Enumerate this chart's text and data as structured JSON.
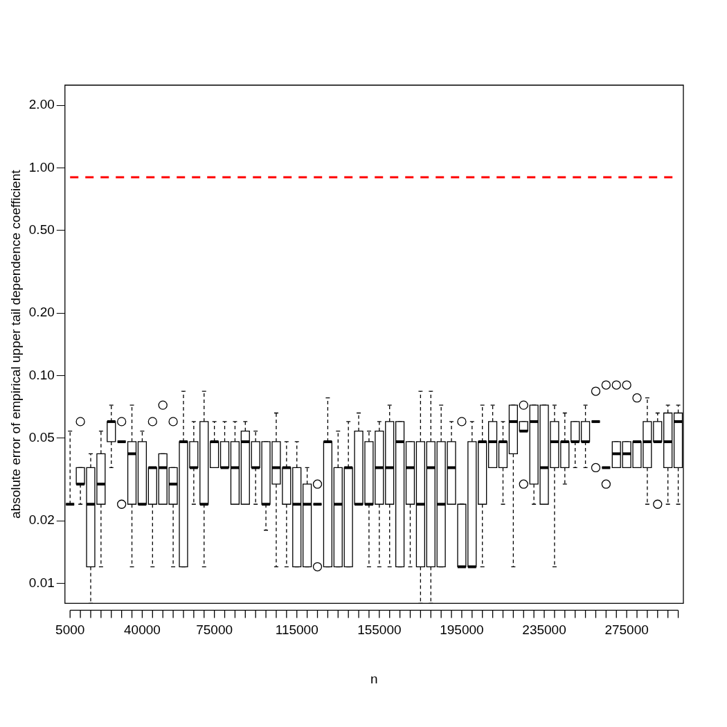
{
  "chart_data": {
    "type": "box",
    "xlabel": "n",
    "ylabel": "absolute error of empirical upper tail dependence coefficient",
    "categories": [
      "5000",
      null,
      null,
      null,
      null,
      null,
      null,
      "40000",
      null,
      null,
      null,
      null,
      null,
      null,
      "75000",
      null,
      null,
      null,
      null,
      null,
      null,
      null,
      "115000",
      null,
      null,
      null,
      null,
      null,
      null,
      null,
      "155000",
      null,
      null,
      null,
      null,
      null,
      null,
      null,
      "195000",
      null,
      null,
      null,
      null,
      null,
      null,
      null,
      "235000",
      null,
      null,
      null,
      null,
      null,
      null,
      null,
      "275000",
      null,
      null,
      null,
      null,
      null
    ],
    "log": "y",
    "ylim": [
      0.008,
      2.5
    ],
    "yticks": [
      {
        "value": 0.01,
        "label": "0.01"
      },
      {
        "value": 0.02,
        "label": "0.02"
      },
      {
        "value": 0.05,
        "label": "0.05"
      },
      {
        "value": 0.1,
        "label": "0.10"
      },
      {
        "value": 0.2,
        "label": "0.20"
      },
      {
        "value": 0.5,
        "label": "0.50"
      },
      {
        "value": 1,
        "label": "1.00"
      },
      {
        "value": 2,
        "label": "2.00"
      }
    ],
    "grid": false,
    "legend": false,
    "ref_lines": [
      {
        "axis": "y",
        "value": 0.9,
        "color": "#ff0000",
        "line_style": "dashed"
      }
    ],
    "boxes": [
      {
        "low": 0.024,
        "q1": 0.024,
        "median": 0.024,
        "q3": 0.024,
        "high": 0.054
      },
      {
        "low": 0.024,
        "q1": 0.03,
        "median": 0.03,
        "q3": 0.036,
        "high": 0.036,
        "outliers": [
          0.06
        ]
      },
      {
        "low": 0.008,
        "q1": 0.012,
        "median": 0.024,
        "q3": 0.036,
        "high": 0.042
      },
      {
        "low": 0.012,
        "q1": 0.024,
        "median": 0.03,
        "q3": 0.042,
        "high": 0.054
      },
      {
        "low": 0.036,
        "q1": 0.048,
        "median": 0.06,
        "q3": 0.06,
        "high": 0.072
      },
      {
        "low": 0.048,
        "q1": 0.048,
        "median": 0.048,
        "q3": 0.048,
        "high": 0.048,
        "outliers": [
          0.06,
          0.024
        ]
      },
      {
        "low": 0.012,
        "q1": 0.024,
        "median": 0.042,
        "q3": 0.048,
        "high": 0.072
      },
      {
        "low": 0.024,
        "q1": 0.024,
        "median": 0.024,
        "q3": 0.048,
        "high": 0.054
      },
      {
        "low": 0.012,
        "q1": 0.024,
        "median": 0.036,
        "q3": 0.036,
        "high": 0.036,
        "outliers": [
          0.06
        ]
      },
      {
        "low": 0.024,
        "q1": 0.024,
        "median": 0.036,
        "q3": 0.042,
        "high": 0.042,
        "outliers": [
          0.072
        ]
      },
      {
        "low": 0.012,
        "q1": 0.024,
        "median": 0.03,
        "q3": 0.036,
        "high": 0.036,
        "outliers": [
          0.06
        ]
      },
      {
        "low": 0.012,
        "q1": 0.012,
        "median": 0.048,
        "q3": 0.048,
        "high": 0.084
      },
      {
        "low": 0.024,
        "q1": 0.036,
        "median": 0.036,
        "q3": 0.048,
        "high": 0.06
      },
      {
        "low": 0.012,
        "q1": 0.024,
        "median": 0.024,
        "q3": 0.06,
        "high": 0.084
      },
      {
        "low": 0.036,
        "q1": 0.036,
        "median": 0.048,
        "q3": 0.048,
        "high": 0.06
      },
      {
        "low": 0.036,
        "q1": 0.036,
        "median": 0.036,
        "q3": 0.048,
        "high": 0.06
      },
      {
        "low": 0.024,
        "q1": 0.024,
        "median": 0.036,
        "q3": 0.048,
        "high": 0.06
      },
      {
        "low": 0.024,
        "q1": 0.024,
        "median": 0.048,
        "q3": 0.054,
        "high": 0.06
      },
      {
        "low": 0.024,
        "q1": 0.036,
        "median": 0.036,
        "q3": 0.048,
        "high": 0.054
      },
      {
        "low": 0.018,
        "q1": 0.024,
        "median": 0.024,
        "q3": 0.048,
        "high": 0.048
      },
      {
        "low": 0.012,
        "q1": 0.03,
        "median": 0.036,
        "q3": 0.048,
        "high": 0.066
      },
      {
        "low": 0.012,
        "q1": 0.024,
        "median": 0.036,
        "q3": 0.036,
        "high": 0.048
      },
      {
        "low": 0.012,
        "q1": 0.012,
        "median": 0.024,
        "q3": 0.036,
        "high": 0.048
      },
      {
        "low": 0.012,
        "q1": 0.012,
        "median": 0.024,
        "q3": 0.03,
        "high": 0.036
      },
      {
        "low": 0.024,
        "q1": 0.024,
        "median": 0.024,
        "q3": 0.024,
        "high": 0.024,
        "outliers": [
          0.03,
          0.012
        ]
      },
      {
        "low": 0.012,
        "q1": 0.012,
        "median": 0.048,
        "q3": 0.048,
        "high": 0.078
      },
      {
        "low": 0.012,
        "q1": 0.012,
        "median": 0.024,
        "q3": 0.036,
        "high": 0.054
      },
      {
        "low": 0.012,
        "q1": 0.012,
        "median": 0.036,
        "q3": 0.036,
        "high": 0.06
      },
      {
        "low": 0.024,
        "q1": 0.024,
        "median": 0.024,
        "q3": 0.054,
        "high": 0.066
      },
      {
        "low": 0.012,
        "q1": 0.024,
        "median": 0.024,
        "q3": 0.048,
        "high": 0.054
      },
      {
        "low": 0.012,
        "q1": 0.024,
        "median": 0.036,
        "q3": 0.054,
        "high": 0.06
      },
      {
        "low": 0.012,
        "q1": 0.024,
        "median": 0.036,
        "q3": 0.06,
        "high": 0.072
      },
      {
        "low": 0.012,
        "q1": 0.012,
        "median": 0.048,
        "q3": 0.06,
        "high": 0.06
      },
      {
        "low": 0.012,
        "q1": 0.024,
        "median": 0.036,
        "q3": 0.048,
        "high": 0.048
      },
      {
        "low": 0.008,
        "q1": 0.012,
        "median": 0.024,
        "q3": 0.048,
        "high": 0.084
      },
      {
        "low": 0.008,
        "q1": 0.012,
        "median": 0.036,
        "q3": 0.048,
        "high": 0.084
      },
      {
        "low": 0.012,
        "q1": 0.012,
        "median": 0.024,
        "q3": 0.048,
        "high": 0.072
      },
      {
        "low": 0.024,
        "q1": 0.024,
        "median": 0.036,
        "q3": 0.048,
        "high": 0.06
      },
      {
        "low": 0.012,
        "q1": 0.012,
        "median": 0.012,
        "q3": 0.024,
        "high": 0.024,
        "outliers": [
          0.06
        ]
      },
      {
        "low": 0.012,
        "q1": 0.012,
        "median": 0.012,
        "q3": 0.048,
        "high": 0.06
      },
      {
        "low": 0.012,
        "q1": 0.024,
        "median": 0.048,
        "q3": 0.048,
        "high": 0.072
      },
      {
        "low": 0.036,
        "q1": 0.036,
        "median": 0.048,
        "q3": 0.06,
        "high": 0.072
      },
      {
        "low": 0.024,
        "q1": 0.036,
        "median": 0.048,
        "q3": 0.048,
        "high": 0.06
      },
      {
        "low": 0.012,
        "q1": 0.042,
        "median": 0.06,
        "q3": 0.072,
        "high": 0.072
      },
      {
        "low": 0.054,
        "q1": 0.054,
        "median": 0.054,
        "q3": 0.06,
        "high": 0.06,
        "outliers": [
          0.072,
          0.03
        ]
      },
      {
        "low": 0.024,
        "q1": 0.03,
        "median": 0.06,
        "q3": 0.072,
        "high": 0.072
      },
      {
        "low": 0.024,
        "q1": 0.024,
        "median": 0.036,
        "q3": 0.072,
        "high": 0.072
      },
      {
        "low": 0.012,
        "q1": 0.036,
        "median": 0.048,
        "q3": 0.06,
        "high": 0.072
      },
      {
        "low": 0.03,
        "q1": 0.036,
        "median": 0.048,
        "q3": 0.048,
        "high": 0.066
      },
      {
        "low": 0.036,
        "q1": 0.048,
        "median": 0.048,
        "q3": 0.06,
        "high": 0.06
      },
      {
        "low": 0.036,
        "q1": 0.048,
        "median": 0.048,
        "q3": 0.06,
        "high": 0.072
      },
      {
        "low": 0.06,
        "q1": 0.06,
        "median": 0.06,
        "q3": 0.06,
        "high": 0.06,
        "outliers": [
          0.084,
          0.036
        ]
      },
      {
        "low": 0.036,
        "q1": 0.036,
        "median": 0.036,
        "q3": 0.036,
        "high": 0.036,
        "outliers": [
          0.09,
          0.03
        ]
      },
      {
        "low": 0.036,
        "q1": 0.036,
        "median": 0.042,
        "q3": 0.048,
        "high": 0.048,
        "outliers": [
          0.09
        ]
      },
      {
        "low": 0.036,
        "q1": 0.036,
        "median": 0.042,
        "q3": 0.048,
        "high": 0.048,
        "outliers": [
          0.09
        ]
      },
      {
        "low": 0.036,
        "q1": 0.036,
        "median": 0.048,
        "q3": 0.048,
        "high": 0.048,
        "outliers": [
          0.078
        ]
      },
      {
        "low": 0.024,
        "q1": 0.036,
        "median": 0.048,
        "q3": 0.06,
        "high": 0.078
      },
      {
        "low": 0.048,
        "q1": 0.048,
        "median": 0.048,
        "q3": 0.06,
        "high": 0.066,
        "outliers": [
          0.024
        ]
      },
      {
        "low": 0.024,
        "q1": 0.036,
        "median": 0.048,
        "q3": 0.066,
        "high": 0.072
      },
      {
        "low": 0.024,
        "q1": 0.036,
        "median": 0.06,
        "q3": 0.066,
        "high": 0.072
      }
    ]
  }
}
